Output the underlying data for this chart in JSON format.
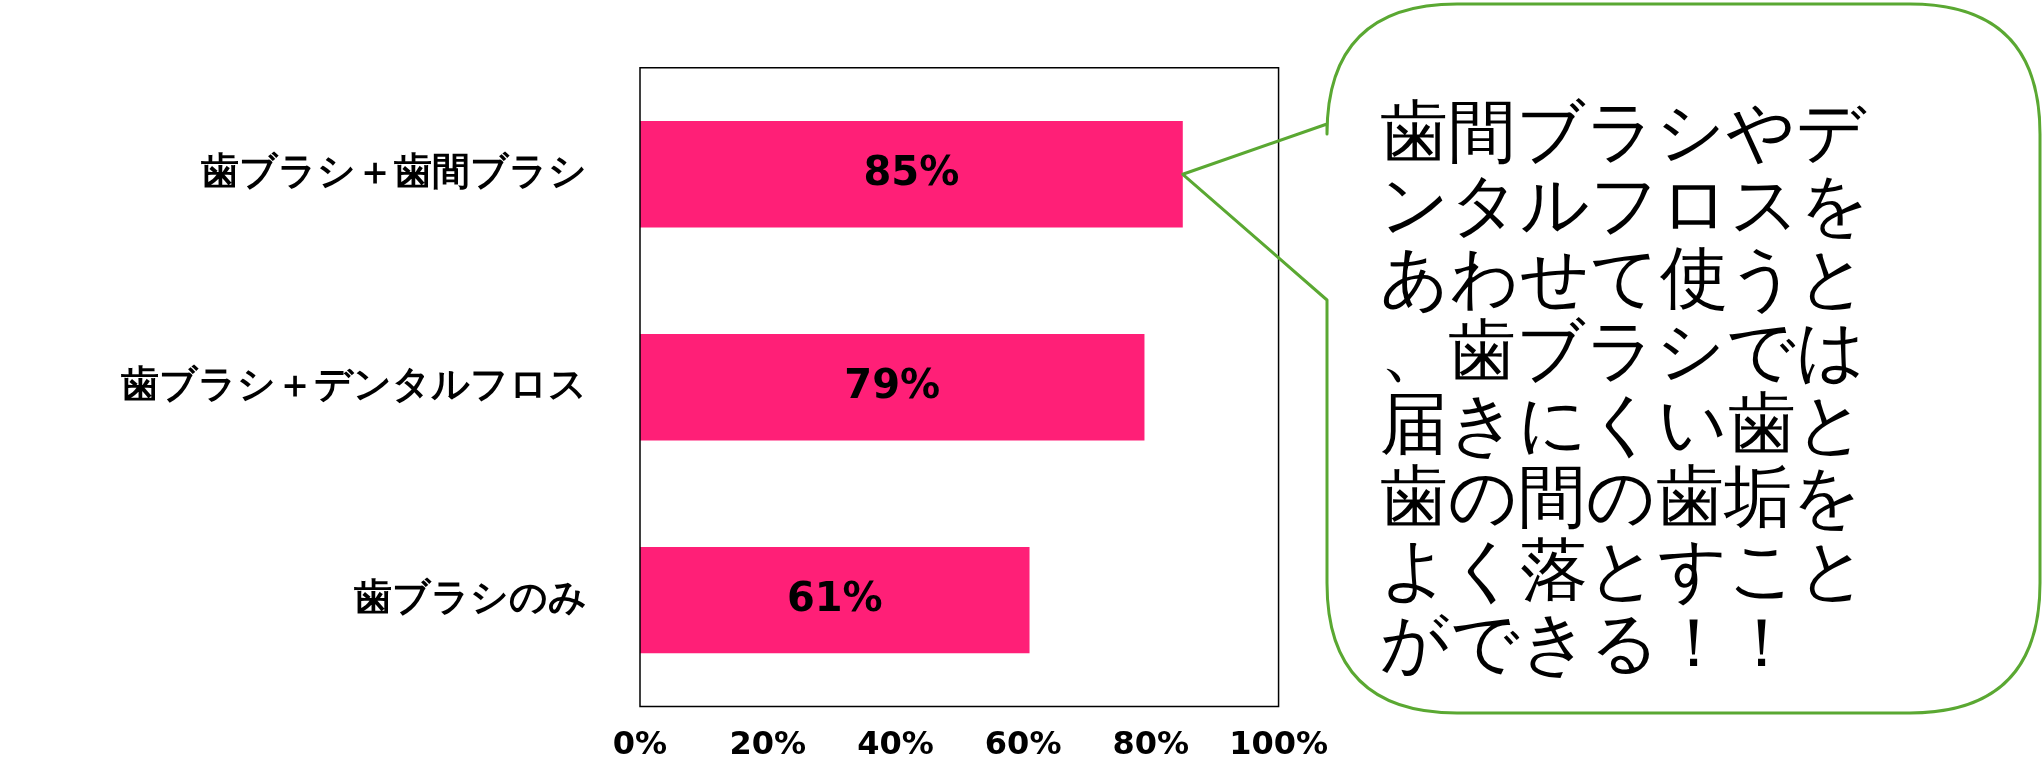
{
  "chart_data": {
    "type": "bar",
    "orientation": "horizontal",
    "categories": [
      "歯ブラシ＋歯間ブラシ",
      "歯ブラシ＋デンタルフロス",
      "歯ブラシのみ"
    ],
    "values": [
      85,
      79,
      61
    ],
    "color": "#ff1f77",
    "value_labels": [
      "85%",
      "79%",
      "61%"
    ],
    "xlim": [
      0,
      100
    ],
    "xticks": [
      {
        "value": 0,
        "label": "0%"
      },
      {
        "value": 20,
        "label": "20%"
      },
      {
        "value": 40,
        "label": "40%"
      },
      {
        "value": 60,
        "label": "60%"
      },
      {
        "value": 80,
        "label": "80%"
      },
      {
        "value": 100,
        "label": "100%"
      }
    ],
    "grid": false,
    "legend": false,
    "annotations": [
      "歯間ブラシやデンタルフロスをあわせて使うと、歯ブラシでは届きにくい歯と歯の間の歯垢をよく落とすことができる！！"
    ]
  }
}
